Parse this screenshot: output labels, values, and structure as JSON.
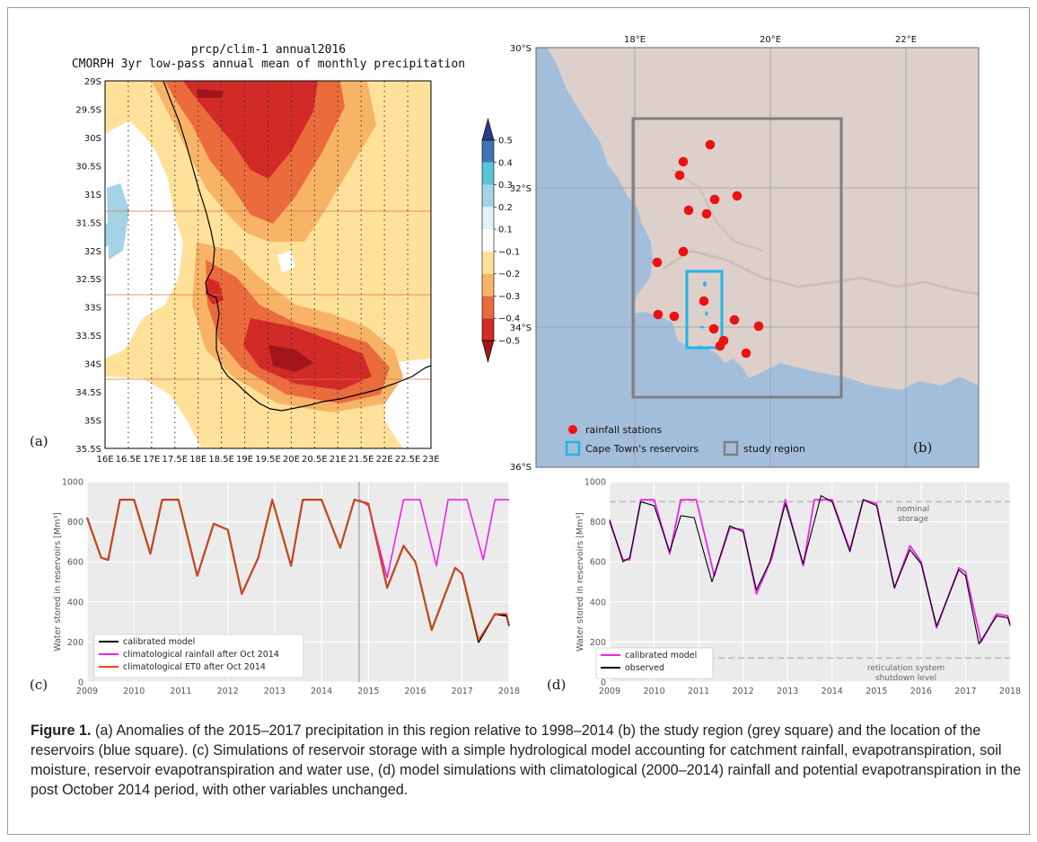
{
  "panel_a": {
    "letter": "(a)",
    "title_line1": "prcp/clim-1 annual2016",
    "title_line2": "CMORPH 3yr low-pass annual mean of monthly precipitation",
    "lat_labels": [
      "29S",
      "29.5S",
      "30S",
      "30.5S",
      "31S",
      "31.5S",
      "32S",
      "32.5S",
      "33S",
      "33.5S",
      "34S",
      "34.5S",
      "35S",
      "35.5S"
    ],
    "lon_labels": [
      "16E",
      "16.5E",
      "17E",
      "17.5E",
      "18E",
      "18.5E",
      "19E",
      "19.5E",
      "20E",
      "20.5E",
      "21E",
      "21.5E",
      "22E",
      "22.5E",
      "23E"
    ],
    "colorbar_labels": [
      "0.5",
      "0.4",
      "0.3",
      "0.2",
      "0.1",
      "−0.1",
      "−0.2",
      "−0.3",
      "−0.4",
      "−0.5"
    ],
    "colorbar_colors": [
      "#2b3a8c",
      "#3f73b4",
      "#58c3d9",
      "#a5d3e6",
      "#e3f1f6",
      "#ffffff",
      "#ffe19a",
      "#f7b467",
      "#ec6b3d",
      "#d12a27",
      "#a4141d"
    ]
  },
  "panel_b": {
    "letter": "(b)",
    "lon_labels": [
      "18°E",
      "20°E",
      "22°E"
    ],
    "lat_labels": [
      "30°S",
      "32°S",
      "34°S",
      "36°S"
    ],
    "legend": {
      "stations": "rainfall stations",
      "reservoirs": "Cape Town's reservoirs",
      "study": "study region"
    },
    "colors": {
      "ocean": "#a3bedb",
      "land": "#ddd0cb",
      "station": "#ee1111",
      "reservoir_box": "#1fb4ea",
      "study_box": "#808080"
    }
  },
  "panel_c": {
    "letter": "(c)",
    "legend": [
      "calibrated model",
      "climatological rainfall after Oct 2014",
      "climatological ET0 after Oct 2014"
    ],
    "colors": [
      "#000000",
      "#ee22ee",
      "#ee4411"
    ]
  },
  "panel_d": {
    "letter": "(d)",
    "legend": [
      "calibrated model",
      "observed"
    ],
    "colors": [
      "#ee22ee",
      "#000000"
    ],
    "annotation_nominal": [
      "nominal",
      "storage"
    ],
    "annotation_shutdown": [
      "reticulation system",
      "shutdown level"
    ]
  },
  "caption": {
    "lead": "Figure 1.",
    "text": " (a) Anomalies of the 2015–2017 precipitation in this region relative to 1998–2014 (b) the study region (grey square) and the location of the reservoirs (blue square). (c) Simulations of reservoir storage with a simple hydrological model accounting for catchment rainfall, evapotranspiration, soil moisture, reservoir evapotranspiration and water use, (d) model simulations with climatological (2000–2014) rainfall and potential evapotranspiration in the post October 2014 period, with other variables unchanged."
  },
  "chart_data": [
    {
      "type": "line",
      "panel": "c",
      "ylabel": "Water stored in reservoirs [Mm³]",
      "xlim": [
        2009,
        2018
      ],
      "ylim": [
        0,
        1000
      ],
      "x_ticks": [
        2009,
        2010,
        2011,
        2012,
        2013,
        2014,
        2015,
        2016,
        2017,
        2018
      ],
      "y_ticks": [
        0,
        200,
        400,
        600,
        800,
        1000
      ],
      "vline": 2014.8,
      "series": [
        {
          "name": "calibrated model",
          "x": [
            2009.0,
            2009.3,
            2009.45,
            2009.7,
            2010.0,
            2010.35,
            2010.6,
            2010.95,
            2011.35,
            2011.7,
            2012.0,
            2012.3,
            2012.65,
            2012.95,
            2013.35,
            2013.6,
            2014.0,
            2014.4,
            2014.7,
            2015.0,
            2015.4,
            2015.75,
            2016.0,
            2016.35,
            2016.85,
            2017.0,
            2017.35,
            2017.7,
            2017.95,
            2018.0
          ],
          "y": [
            820,
            620,
            610,
            910,
            910,
            640,
            910,
            910,
            530,
            790,
            760,
            440,
            620,
            910,
            580,
            910,
            910,
            670,
            910,
            890,
            470,
            680,
            600,
            260,
            570,
            540,
            200,
            340,
            330,
            280
          ]
        },
        {
          "name": "climatological rainfall after Oct 2014",
          "x": [
            2014.8,
            2015.0,
            2015.4,
            2015.75,
            2016.1,
            2016.45,
            2016.7,
            2017.1,
            2017.45,
            2017.7,
            2017.95,
            2018.0
          ],
          "y": [
            910,
            880,
            520,
            910,
            910,
            580,
            910,
            910,
            610,
            910,
            910,
            910
          ]
        },
        {
          "name": "climatological ET0 after Oct 2014",
          "x": [
            2009.0,
            2009.3,
            2009.45,
            2009.7,
            2010.0,
            2010.35,
            2010.6,
            2010.95,
            2011.35,
            2011.7,
            2012.0,
            2012.3,
            2012.65,
            2012.95,
            2013.35,
            2013.6,
            2014.0,
            2014.4,
            2014.7,
            2015.0,
            2015.4,
            2015.75,
            2016.0,
            2016.35,
            2016.85,
            2017.0,
            2017.35,
            2017.7,
            2017.95,
            2018.0
          ],
          "y": [
            820,
            620,
            610,
            910,
            910,
            640,
            910,
            910,
            530,
            790,
            760,
            440,
            620,
            910,
            580,
            910,
            910,
            670,
            910,
            890,
            470,
            680,
            600,
            260,
            570,
            540,
            210,
            340,
            340,
            280
          ]
        }
      ]
    },
    {
      "type": "line",
      "panel": "d",
      "ylabel": "Water stored in reservoirs [Mm³]",
      "xlim": [
        2009,
        2018
      ],
      "ylim": [
        0,
        1000
      ],
      "x_ticks": [
        2009,
        2010,
        2011,
        2012,
        2013,
        2014,
        2015,
        2016,
        2017,
        2018
      ],
      "y_ticks": [
        0,
        200,
        400,
        600,
        800,
        1000
      ],
      "hlines": [
        900,
        120
      ],
      "series": [
        {
          "name": "calibrated model",
          "x": [
            2009.0,
            2009.3,
            2009.45,
            2009.7,
            2010.0,
            2010.35,
            2010.6,
            2010.95,
            2011.35,
            2011.7,
            2012.0,
            2012.3,
            2012.65,
            2012.95,
            2013.35,
            2013.6,
            2014.0,
            2014.4,
            2014.7,
            2015.0,
            2015.4,
            2015.75,
            2016.0,
            2016.35,
            2016.85,
            2017.0,
            2017.35,
            2017.7,
            2017.95,
            2018.0
          ],
          "y": [
            800,
            610,
            610,
            910,
            910,
            640,
            910,
            910,
            530,
            770,
            760,
            440,
            620,
            910,
            580,
            910,
            910,
            660,
            910,
            890,
            470,
            680,
            600,
            270,
            570,
            550,
            200,
            340,
            330,
            280
          ]
        },
        {
          "name": "observed",
          "x": [
            2009.0,
            2009.3,
            2009.45,
            2009.7,
            2010.0,
            2010.35,
            2010.6,
            2010.9,
            2011.3,
            2011.7,
            2012.0,
            2012.3,
            2012.6,
            2012.95,
            2013.35,
            2013.75,
            2014.0,
            2014.4,
            2014.7,
            2015.0,
            2015.4,
            2015.75,
            2016.0,
            2016.35,
            2016.85,
            2017.0,
            2017.3,
            2017.7,
            2017.95,
            2018.0
          ],
          "y": [
            810,
            600,
            620,
            900,
            880,
            650,
            830,
            820,
            500,
            780,
            750,
            460,
            600,
            890,
            590,
            930,
            900,
            650,
            910,
            880,
            470,
            660,
            590,
            280,
            560,
            530,
            190,
            330,
            320,
            290
          ]
        }
      ]
    }
  ]
}
